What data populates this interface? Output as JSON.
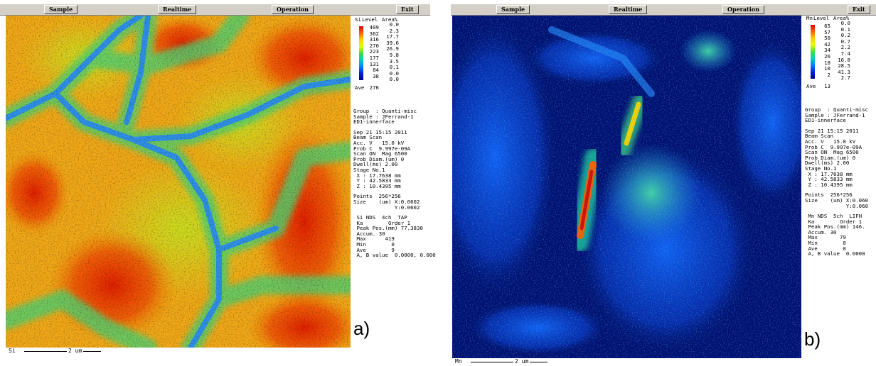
{
  "panels": [
    {
      "buttons": [
        "Sample",
        "Realtime",
        "Operation",
        "Exit"
      ],
      "legend": {
        "element": "Si",
        "level_header": "Level",
        "area_header": "Area%",
        "levels": [
          "409",
          "362",
          "316",
          "270",
          "223",
          "177",
          "131",
          "84",
          "38"
        ],
        "areas": [
          "0.0",
          "2.3",
          "17.7",
          "39.6",
          "26.9",
          "9.8",
          "3.5",
          "0.1",
          "0.0",
          "0.0"
        ],
        "ave_label": "Ave",
        "ave": "276"
      },
      "info": [
        [
          "Group  : Quanti-misc",
          "Sample : JFerrand-1",
          "ED1-innerface"
        ],
        [
          "Sep 21 15:15 2011",
          "Beam Scan",
          "Acc. V   15.0 kV",
          "Prob C  9.997e-09A",
          "Scan ON  Mag 6500",
          "Prob Diam.(um) 0",
          "Dwell(ms) 2.00",
          "Stage No.1",
          " X : 17.7638 mm",
          " Y : 42.5833 mm",
          " Z : 10.4395 mm"
        ],
        [
          "Points  256*256",
          "Size    (um) X:0.0602",
          "             Y:0.0602"
        ],
        [
          " Si NDS  4ch  TAP",
          " Ka        Order 1",
          " Peak Pos.(mm) 77.3830",
          " Accum. 30",
          " Max      419",
          " Min        0",
          " Ave        9",
          " A, B value  0.0000, 0.000"
        ]
      ],
      "scale_element": "Si",
      "scale_length": "2 um",
      "tag": "a)"
    },
    {
      "buttons": [
        "Sample",
        "Realtime",
        "Operation",
        "Exit"
      ],
      "legend": {
        "element": "Mn",
        "level_header": "Level",
        "area_header": "Area%",
        "levels": [
          "65",
          "57",
          "50",
          "42",
          "34",
          "26",
          "18",
          "10",
          "2"
        ],
        "areas": [
          "0.0",
          "0.1",
          "0.2",
          "0.7",
          "2.2",
          "7.4",
          "16.8",
          "28.5",
          "41.3",
          "2.7"
        ],
        "ave_label": "Ave",
        "ave": "13"
      },
      "info": [
        [
          "Group  : Quanti-misc",
          "Sample : JFerrand-1",
          "ED1-innerface"
        ],
        [
          "Sep 21 15:15 2011",
          "Beam Scan",
          "Acc. V   15.0 kV",
          "Prob C  9.997e-09A",
          "Scan ON  Mag 6500",
          "Prob Diam.(um) 0",
          "Dwell(ms) 2.00",
          "Stage No.1",
          " X : 17.7638 mm",
          " Y : 42.5833 mm",
          " Z : 10.4395 mm"
        ],
        [
          "Points  256*256",
          "Size    (um) X:0.060",
          "             Y:0.060"
        ],
        [
          " Mn NDS  5ch  LIFH",
          " Ka        Order 1",
          " Peak Pos.(mm) 146.",
          " Accum. 30",
          " Max       79",
          " Min        0",
          " Ave        0",
          " A, B value  0.0000"
        ]
      ],
      "scale_element": "Mn",
      "scale_length": "2 um",
      "tag": "b)"
    }
  ]
}
